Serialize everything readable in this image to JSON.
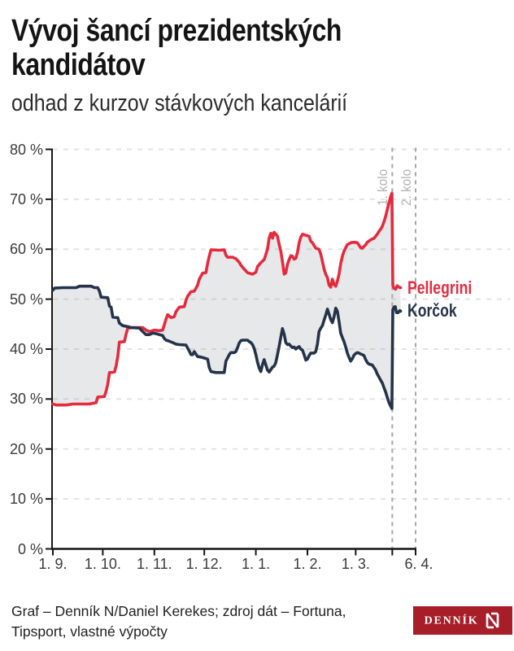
{
  "header": {
    "title_line1": "Vývoj šancí prezidentských",
    "title_line2": "kandidátov",
    "subtitle": "odhad z kurzov stávkových kancelárií"
  },
  "footer": {
    "source_line1": "Graf – Denník N/Daniel Kerekes; zdroj dát – Fortuna,",
    "source_line2": "Tipsport, vlastné výpočty",
    "logo_text": "DENNÍK",
    "logo_bg_color": "#a81e28",
    "logo_fg_color": "#ffffff"
  },
  "chart_data": {
    "type": "line",
    "title": "Vývoj šancí prezidentských kandidátov",
    "subtitle": "odhad z kurzov stávkových kancelárií",
    "grid_on": true,
    "legend_position": "right-end-labels",
    "colors": {
      "axis": "#161616",
      "tick_label": "#3a3a3a",
      "gridline": "#e3e3e3",
      "event_line": "#a8a8a8",
      "event_label": "#b4b4b4",
      "fill_between": "rgba(146,149,158,0.22)"
    },
    "y_axis": {
      "min": 0,
      "max": 80,
      "tick_step": 10,
      "tick_suffix": " %",
      "tick_labels": [
        "0 %",
        "10 %",
        "20 %",
        "30 %",
        "40 %",
        "50 %",
        "60 %",
        "70 %",
        "80 %"
      ]
    },
    "x_axis": {
      "range_days": [
        0,
        218
      ],
      "ticks": [
        {
          "day": 0,
          "label": "1. 9."
        },
        {
          "day": 30,
          "label": "1. 10."
        },
        {
          "day": 61,
          "label": "1. 11."
        },
        {
          "day": 91,
          "label": "1. 12."
        },
        {
          "day": 122,
          "label": "1. 1."
        },
        {
          "day": 153,
          "label": "1. 2."
        },
        {
          "day": 182,
          "label": "1. 3."
        },
        {
          "day": 218,
          "label": "6. 4."
        }
      ],
      "extra_tick_days": [
        204
      ]
    },
    "events": [
      {
        "day": 204,
        "label": "1. kolo"
      },
      {
        "day": 218,
        "label": "2. kolo"
      }
    ],
    "series": [
      {
        "name": "Pellegrini",
        "color": "#e62a3e",
        "points": [
          [
            0,
            29
          ],
          [
            2,
            28.8
          ],
          [
            8,
            28.8
          ],
          [
            12,
            29
          ],
          [
            22,
            29
          ],
          [
            26,
            29.3
          ],
          [
            27,
            30.4
          ],
          [
            31,
            30.5
          ],
          [
            32,
            31.6
          ],
          [
            33,
            33
          ],
          [
            34,
            35.3
          ],
          [
            37,
            35.4
          ],
          [
            38,
            36.6
          ],
          [
            39,
            38.5
          ],
          [
            40,
            41.4
          ],
          [
            43,
            41.5
          ],
          [
            44,
            43
          ],
          [
            45,
            44.2
          ],
          [
            48,
            44.3
          ],
          [
            54,
            44.3
          ],
          [
            56,
            43.8
          ],
          [
            58,
            43.5
          ],
          [
            61,
            43.8
          ],
          [
            64,
            43.7
          ],
          [
            66,
            43.8
          ],
          [
            68,
            46
          ],
          [
            69,
            46.9
          ],
          [
            71,
            46.3
          ],
          [
            73,
            46.5
          ],
          [
            74,
            47.5
          ],
          [
            76,
            48.4
          ],
          [
            79,
            48.5
          ],
          [
            80,
            49.8
          ],
          [
            81,
            50.6
          ],
          [
            83,
            51.5
          ],
          [
            85,
            51.6
          ],
          [
            87,
            52.8
          ],
          [
            88,
            54
          ],
          [
            90,
            55.2
          ],
          [
            92,
            55.3
          ],
          [
            93,
            57.2
          ],
          [
            94,
            58.6
          ],
          [
            95,
            59.9
          ],
          [
            100,
            59.8
          ],
          [
            103,
            59.9
          ],
          [
            104,
            58.8
          ],
          [
            105,
            58.4
          ],
          [
            108,
            58.4
          ],
          [
            110,
            58.1
          ],
          [
            112,
            57.4
          ],
          [
            113,
            56.8
          ],
          [
            115,
            56
          ],
          [
            117,
            55.3
          ],
          [
            120,
            55
          ],
          [
            122,
            55.4
          ],
          [
            123,
            56.5
          ],
          [
            125,
            57.3
          ],
          [
            127,
            57.9
          ],
          [
            129,
            60
          ],
          [
            130,
            62.3
          ],
          [
            131,
            63.2
          ],
          [
            132,
            62.2
          ],
          [
            133,
            63.4
          ],
          [
            135,
            62.6
          ],
          [
            136,
            61
          ],
          [
            137,
            59.6
          ],
          [
            138,
            57.5
          ],
          [
            139,
            55
          ],
          [
            140,
            55.3
          ],
          [
            141,
            57
          ],
          [
            142,
            57.9
          ],
          [
            143,
            58.7
          ],
          [
            144,
            58.6
          ],
          [
            145,
            58
          ],
          [
            146,
            58.2
          ],
          [
            147,
            59.3
          ],
          [
            148,
            61.3
          ],
          [
            149,
            62.4
          ],
          [
            150,
            63
          ],
          [
            152,
            62.8
          ],
          [
            154,
            62.6
          ],
          [
            155,
            61.6
          ],
          [
            156,
            61.3
          ],
          [
            158,
            60.2
          ],
          [
            160,
            60
          ],
          [
            161,
            59
          ],
          [
            162,
            57.6
          ],
          [
            163,
            56
          ],
          [
            164,
            55
          ],
          [
            165,
            54.3
          ],
          [
            166,
            52.8
          ],
          [
            167,
            52.4
          ],
          [
            168,
            54
          ],
          [
            169,
            52.9
          ],
          [
            170,
            52.6
          ],
          [
            171,
            53.6
          ],
          [
            172,
            55
          ],
          [
            173,
            57.1
          ],
          [
            174,
            58.6
          ],
          [
            175,
            59.6
          ],
          [
            176,
            60.3
          ],
          [
            177,
            60.9
          ],
          [
            179,
            61.3
          ],
          [
            181,
            61.4
          ],
          [
            183,
            61.3
          ],
          [
            184,
            60.8
          ],
          [
            185,
            60.3
          ],
          [
            186,
            60.2
          ],
          [
            188,
            60.9
          ],
          [
            189,
            61.4
          ],
          [
            191,
            61.9
          ],
          [
            193,
            62.2
          ],
          [
            194,
            62.6
          ],
          [
            195,
            63
          ],
          [
            196,
            63.6
          ],
          [
            197,
            64
          ],
          [
            198,
            64.6
          ],
          [
            199,
            65.5
          ],
          [
            200,
            66.6
          ],
          [
            201,
            68
          ],
          [
            202,
            69.3
          ],
          [
            203,
            70.5
          ],
          [
            203.8,
            71.2
          ],
          [
            204.3,
            52.8
          ],
          [
            205,
            52.2
          ],
          [
            206,
            52
          ],
          [
            207,
            52.7
          ],
          [
            208,
            52.4
          ],
          [
            209,
            52.3
          ]
        ]
      },
      {
        "name": "Korčok",
        "color": "#25334a",
        "points": [
          [
            0,
            51.8
          ],
          [
            1,
            52.2
          ],
          [
            6,
            52.3
          ],
          [
            14,
            52.3
          ],
          [
            16,
            52.6
          ],
          [
            23,
            52.6
          ],
          [
            25,
            52.3
          ],
          [
            27,
            52.3
          ],
          [
            28,
            51.6
          ],
          [
            29,
            50.4
          ],
          [
            33,
            50.3
          ],
          [
            34,
            48.6
          ],
          [
            35,
            48.4
          ],
          [
            36,
            46.4
          ],
          [
            39,
            46.3
          ],
          [
            40,
            45.2
          ],
          [
            42,
            44.7
          ],
          [
            45,
            44.5
          ],
          [
            47,
            44.3
          ],
          [
            52,
            44.2
          ],
          [
            54,
            43.5
          ],
          [
            55,
            43.2
          ],
          [
            56,
            42.9
          ],
          [
            58,
            42.9
          ],
          [
            60,
            43.2
          ],
          [
            62,
            43.1
          ],
          [
            64,
            42.9
          ],
          [
            66,
            42.7
          ],
          [
            67,
            42.1
          ],
          [
            68,
            41.8
          ],
          [
            69,
            41.7
          ],
          [
            72,
            41.3
          ],
          [
            74,
            41
          ],
          [
            76,
            40.9
          ],
          [
            80,
            40.8
          ],
          [
            82,
            39.6
          ],
          [
            83,
            38.9
          ],
          [
            84,
            38.9
          ],
          [
            85,
            39.5
          ],
          [
            86,
            39
          ],
          [
            87,
            38.5
          ],
          [
            89,
            38.4
          ],
          [
            91,
            38.2
          ],
          [
            93,
            38
          ],
          [
            94,
            36.3
          ],
          [
            95,
            35.5
          ],
          [
            98,
            35.3
          ],
          [
            103,
            35.3
          ],
          [
            104,
            37.6
          ],
          [
            105,
            38.2
          ],
          [
            106,
            38.9
          ],
          [
            107,
            39.3
          ],
          [
            109,
            39.3
          ],
          [
            110,
            39.5
          ],
          [
            111,
            40.3
          ],
          [
            112,
            41.2
          ],
          [
            113,
            41.7
          ],
          [
            114,
            41.8
          ],
          [
            117,
            41.8
          ],
          [
            118,
            41.5
          ],
          [
            119,
            41.3
          ],
          [
            120,
            40.9
          ],
          [
            121,
            40.1
          ],
          [
            122,
            38.9
          ],
          [
            123,
            37.4
          ],
          [
            124,
            36.2
          ],
          [
            125,
            35.5
          ],
          [
            126,
            36.9
          ],
          [
            127,
            37.9
          ],
          [
            128,
            36.8
          ],
          [
            129,
            35.8
          ],
          [
            130,
            35.4
          ],
          [
            131,
            35.9
          ],
          [
            132,
            36.4
          ],
          [
            133,
            36.6
          ],
          [
            134,
            37.3
          ],
          [
            135,
            38.9
          ],
          [
            136,
            40.5
          ],
          [
            137,
            42.4
          ],
          [
            138,
            44.1
          ],
          [
            139,
            43
          ],
          [
            140,
            41.3
          ],
          [
            141,
            40.9
          ],
          [
            142,
            41
          ],
          [
            143,
            40.6
          ],
          [
            144,
            40.3
          ],
          [
            145,
            40.4
          ],
          [
            146,
            40
          ],
          [
            147,
            40.3
          ],
          [
            148,
            40.5
          ],
          [
            149,
            40
          ],
          [
            150,
            39.8
          ],
          [
            151,
            38.9
          ],
          [
            152,
            37.8
          ],
          [
            153,
            38
          ],
          [
            154,
            38.7
          ],
          [
            155,
            39.2
          ],
          [
            157,
            39.2
          ],
          [
            158,
            39.5
          ],
          [
            159,
            41
          ],
          [
            160,
            43.5
          ],
          [
            161,
            44.2
          ],
          [
            162,
            44.7
          ],
          [
            163,
            45.8
          ],
          [
            164,
            46.8
          ],
          [
            165,
            48
          ],
          [
            166,
            47
          ],
          [
            167,
            45.9
          ],
          [
            168,
            45.3
          ],
          [
            169,
            46.5
          ],
          [
            170,
            48.2
          ],
          [
            171,
            47.6
          ],
          [
            172,
            45.5
          ],
          [
            173,
            43.2
          ],
          [
            174,
            42.3
          ],
          [
            175,
            41.5
          ],
          [
            176,
            40.4
          ],
          [
            177,
            39.2
          ],
          [
            178,
            38.3
          ],
          [
            179,
            37.6
          ],
          [
            180,
            38.1
          ],
          [
            181,
            38.8
          ],
          [
            182,
            39.1
          ],
          [
            183,
            39.3
          ],
          [
            184,
            39.2
          ],
          [
            185,
            39
          ],
          [
            186,
            38.9
          ],
          [
            187,
            38.7
          ],
          [
            188,
            37.9
          ],
          [
            189,
            37.3
          ],
          [
            190,
            37
          ],
          [
            191,
            36.9
          ],
          [
            192,
            36.8
          ],
          [
            193,
            36.3
          ],
          [
            194,
            35.8
          ],
          [
            195,
            35
          ],
          [
            196,
            34.4
          ],
          [
            197,
            33.8
          ],
          [
            198,
            33.2
          ],
          [
            199,
            32.3
          ],
          [
            200,
            31.4
          ],
          [
            201,
            30.3
          ],
          [
            202,
            29.3
          ],
          [
            203,
            28.6
          ],
          [
            203.8,
            28.1
          ],
          [
            204.3,
            47.9
          ],
          [
            205,
            48.4
          ],
          [
            205.8,
            48.5
          ],
          [
            206.5,
            47.3
          ],
          [
            207.5,
            47.3
          ],
          [
            208.5,
            47.7
          ],
          [
            209,
            47.6
          ]
        ]
      }
    ]
  }
}
